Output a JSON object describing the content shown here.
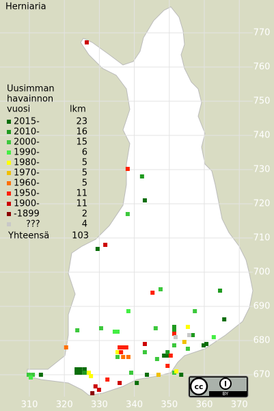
{
  "title": "Herniaria",
  "legend": {
    "heading": [
      "Uusimman",
      "havainnon",
      "vuosi"
    ],
    "count_heading": "lkm",
    "items": [
      {
        "label": "2015-",
        "count": 23,
        "color": "#0a6e0a",
        "points": [
          [
            343.0,
            721.0
          ],
          [
            329.5,
            706.8
          ],
          [
            365.7,
            686.2
          ],
          [
            359.8,
            678.6
          ],
          [
            360.6,
            679.0
          ],
          [
            348.5,
            675.6
          ],
          [
            349.5,
            675.6
          ],
          [
            323.5,
            671.6
          ],
          [
            324.6,
            671.6
          ],
          [
            325.8,
            671.6
          ],
          [
            323.5,
            670.6
          ],
          [
            324.6,
            670.6
          ],
          [
            313.3,
            670.0
          ],
          [
            343.6,
            670.0
          ],
          [
            353.4,
            670.0
          ],
          [
            340.7,
            667.6
          ]
        ]
      },
      {
        "label": "2010-",
        "count": 16,
        "color": "#1f9a1f",
        "points": [
          [
            342.2,
            728.0
          ],
          [
            364.5,
            694.6
          ],
          [
            351.4,
            684.0
          ],
          [
            351.4,
            683.0
          ],
          [
            356.7,
            681.6
          ],
          [
            325.8,
            670.6
          ],
          [
            349.5,
            676.6
          ]
        ]
      },
      {
        "label": "2000-",
        "count": 15,
        "color": "#3cc83c",
        "points": [
          [
            338.1,
            717.0
          ],
          [
            347.5,
            695.0
          ],
          [
            357.3,
            688.6
          ],
          [
            330.5,
            683.6
          ],
          [
            323.7,
            683.0
          ],
          [
            346.1,
            683.6
          ],
          [
            355.3,
            677.6
          ],
          [
            343.0,
            676.6
          ],
          [
            346.5,
            674.6
          ],
          [
            339.1,
            670.6
          ],
          [
            351.4,
            670.6
          ],
          [
            309.8,
            670.0
          ],
          [
            311.0,
            670.0
          ],
          [
            335.2,
            675.2
          ],
          [
            351.4,
            678.6
          ]
        ]
      },
      {
        "label": "1990-",
        "count": 6,
        "color": "#44ee44",
        "points": [
          [
            338.3,
            688.6
          ],
          [
            334.4,
            682.6
          ],
          [
            335.2,
            682.6
          ],
          [
            362.7,
            681.0
          ],
          [
            310.4,
            669.2
          ]
        ]
      },
      {
        "label": "1980-",
        "count": 5,
        "color": "#ffff00",
        "points": [
          [
            355.3,
            684.0
          ],
          [
            335.2,
            676.6
          ],
          [
            327.0,
            670.6
          ],
          [
            327.6,
            669.6
          ],
          [
            352.0,
            671.0
          ]
        ]
      },
      {
        "label": "1970-",
        "count": 5,
        "color": "#f0c000",
        "points": [
          [
            346.9,
            670.0
          ],
          [
            354.3,
            679.6
          ]
        ]
      },
      {
        "label": "1960-",
        "count": 5,
        "color": "#ff7000",
        "points": [
          [
            320.5,
            678.0
          ],
          [
            336.8,
            675.2
          ],
          [
            338.3,
            675.2
          ]
        ]
      },
      {
        "label": "1950-",
        "count": 11,
        "color": "#ff2000",
        "points": [
          [
            338.1,
            730.2
          ],
          [
            345.2,
            694.0
          ],
          [
            335.8,
            678.0
          ],
          [
            336.8,
            678.0
          ],
          [
            337.7,
            678.0
          ],
          [
            336.2,
            676.6
          ],
          [
            351.4,
            682.0
          ],
          [
            350.4,
            675.6
          ],
          [
            349.5,
            672.6
          ],
          [
            332.3,
            668.6
          ]
        ]
      },
      {
        "label": "1900-",
        "count": 11,
        "color": "#cc0000",
        "points": [
          [
            326.4,
            767.2
          ],
          [
            331.7,
            708.0
          ],
          [
            343.0,
            679.0
          ],
          [
            335.8,
            667.6
          ],
          [
            328.9,
            666.6
          ],
          [
            329.9,
            665.6
          ]
        ]
      },
      {
        "label": "-1899",
        "count": 2,
        "color": "#8b0000",
        "points": [
          [
            328.0,
            664.6
          ]
        ]
      },
      {
        "label": "???",
        "count": 4,
        "color": "#c8c8c8",
        "points": [
          [
            351.8,
            681.0
          ],
          [
            355.7,
            681.6
          ]
        ]
      }
    ],
    "total_label": "Yhteensä",
    "total": 103
  },
  "xticks": [
    310,
    320,
    330,
    340,
    350,
    360,
    370
  ],
  "yticks": [
    770,
    760,
    750,
    740,
    730,
    720,
    710,
    700,
    690,
    680,
    670
  ],
  "license": "BY"
}
